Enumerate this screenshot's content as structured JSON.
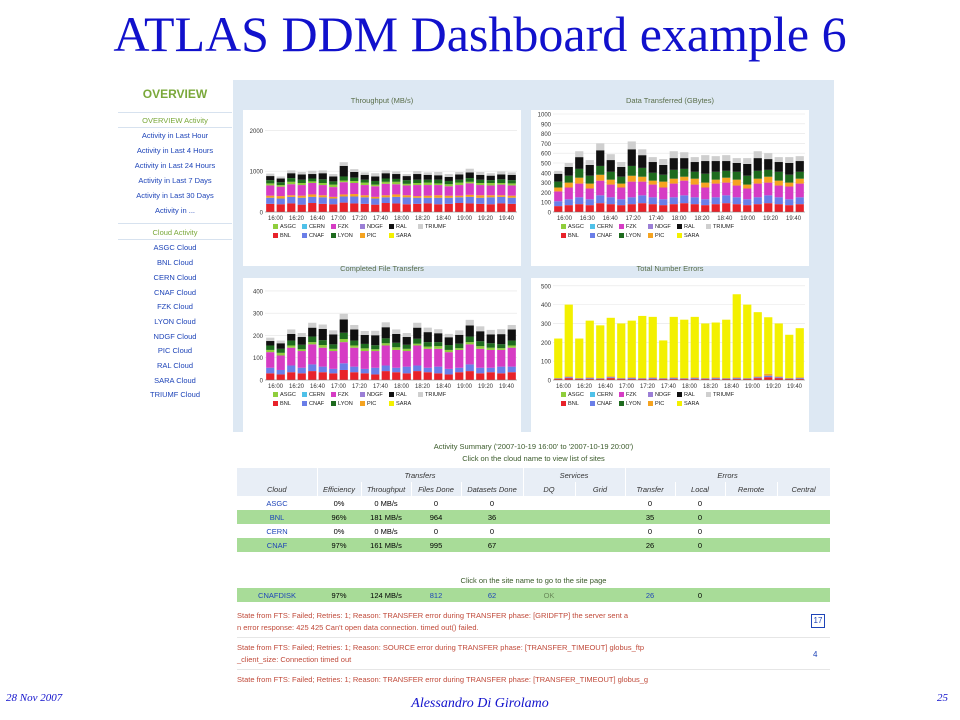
{
  "slide_title": "ATLAS DDM Dashboard example 6",
  "footer": {
    "date": "28 Nov 2007",
    "author": "Alessandro Di Girolamo",
    "page": "25"
  },
  "sidebar": {
    "heading": "OVERVIEW",
    "section1": "OVERVIEW Activity",
    "activity_links": [
      "Activity in Last Hour",
      "Activity in Last 4 Hours",
      "Activity in Last 24 Hours",
      "Activity in Last 7 Days",
      "Activity in Last 30 Days",
      "Activity in ..."
    ],
    "section2": "Cloud Activity",
    "cloud_links": [
      "ASGC Cloud",
      "BNL Cloud",
      "CERN Cloud",
      "CNAF Cloud",
      "FZK Cloud",
      "LYON Cloud",
      "NDGF Cloud",
      "PIC Cloud",
      "RAL Cloud",
      "SARA Cloud",
      "TRIUMF Cloud"
    ]
  },
  "colors": {
    "accent_green": "#7aa83a",
    "link_blue": "#1e44b8",
    "title_blue": "#1111cc",
    "row_green": "#a8dc98"
  },
  "legend": [
    {
      "name": "ASGC",
      "color": "#8fce3c"
    },
    {
      "name": "CERN",
      "color": "#4fc1e9"
    },
    {
      "name": "FZK",
      "color": "#d63cc4"
    },
    {
      "name": "NDGF",
      "color": "#9b7fd6"
    },
    {
      "name": "RAL",
      "color": "#111111"
    },
    {
      "name": "TRIUMF",
      "color": "#cfcfcf"
    },
    {
      "name": "BNL",
      "color": "#e8222a"
    },
    {
      "name": "CNAF",
      "color": "#6a7ee8"
    },
    {
      "name": "LYON",
      "color": "#1e6b1e"
    },
    {
      "name": "PIC",
      "color": "#f5a320"
    },
    {
      "name": "SARA",
      "color": "#f3f000"
    }
  ],
  "chart_data": [
    {
      "type": "bar",
      "stacked": true,
      "title": "Throughput (MB/s)",
      "yticks": [
        0,
        1000,
        2000
      ],
      "ylim": [
        0,
        2400
      ],
      "xticks": [
        "16:00",
        "16:20",
        "16:40",
        "17:00",
        "17:20",
        "17:40",
        "18:00",
        "18:20",
        "18:40",
        "19:00",
        "19:20",
        "19:40"
      ],
      "n_bars": 24,
      "series": [
        {
          "name": "BNL",
          "values": [
            200,
            190,
            210,
            180,
            220,
            200,
            190,
            230,
            210,
            200,
            180,
            220,
            210,
            190,
            200,
            210,
            190,
            200,
            220,
            210,
            200,
            190,
            210,
            200
          ]
        },
        {
          "name": "CNAF",
          "values": [
            150,
            140,
            160,
            170,
            150,
            160,
            140,
            150,
            170,
            160,
            150,
            140,
            160,
            170,
            150,
            140,
            160,
            150,
            140,
            160,
            150,
            170,
            160,
            150
          ]
        },
        {
          "name": "PIC",
          "values": [
            50,
            60,
            40,
            50,
            60,
            50,
            40,
            50,
            60,
            50,
            40,
            50,
            60,
            50,
            40,
            50,
            60,
            50,
            40,
            50,
            60,
            50,
            40,
            50
          ]
        },
        {
          "name": "FZK",
          "values": [
            250,
            230,
            270,
            260,
            280,
            250,
            240,
            300,
            270,
            250,
            260,
            280,
            250,
            240,
            270,
            260,
            250,
            230,
            260,
            280,
            250,
            240,
            260,
            250
          ]
        },
        {
          "name": "ASGC",
          "values": [
            50,
            40,
            60,
            50,
            40,
            50,
            60,
            40,
            50,
            60,
            40,
            50,
            60,
            40,
            50,
            60,
            40,
            50,
            60,
            40,
            50,
            60,
            40,
            50
          ]
        },
        {
          "name": "LYON",
          "values": [
            80,
            70,
            90,
            80,
            70,
            90,
            80,
            100,
            80,
            70,
            90,
            80,
            70,
            90,
            80,
            70,
            90,
            80,
            70,
            90,
            80,
            70,
            90,
            80
          ]
        },
        {
          "name": "RAL",
          "values": [
            100,
            90,
            120,
            130,
            110,
            150,
            120,
            260,
            140,
            120,
            110,
            130,
            120,
            100,
            140,
            120,
            110,
            100,
            130,
            140,
            120,
            110,
            120,
            130
          ]
        },
        {
          "name": "TRIUMF",
          "values": [
            60,
            50,
            70,
            60,
            80,
            70,
            60,
            90,
            70,
            60,
            80,
            70,
            60,
            50,
            70,
            60,
            80,
            70,
            60,
            90,
            70,
            60,
            70,
            60
          ]
        }
      ]
    },
    {
      "type": "bar",
      "stacked": true,
      "title": "Data Transferred (GBytes)",
      "yticks": [
        0,
        100,
        200,
        300,
        400,
        500,
        600,
        700,
        800,
        900,
        1000
      ],
      "ylim": [
        0,
        1000
      ],
      "xticks": [
        "16:00",
        "16:30",
        "16:40",
        "17:20",
        "17:40",
        "18:00",
        "18:20",
        "18:40",
        "19:00",
        "19:20",
        "19:40"
      ],
      "n_bars": 24,
      "series": [
        {
          "name": "BNL",
          "values": [
            60,
            70,
            80,
            70,
            90,
            80,
            70,
            80,
            90,
            80,
            70,
            80,
            90,
            80,
            70,
            80,
            90,
            80,
            70,
            80,
            90,
            80,
            70,
            80
          ]
        },
        {
          "name": "CNAF",
          "values": [
            50,
            60,
            70,
            60,
            80,
            70,
            60,
            70,
            80,
            70,
            60,
            70,
            80,
            70,
            60,
            70,
            80,
            70,
            60,
            70,
            80,
            70,
            60,
            70
          ]
        },
        {
          "name": "FZK",
          "values": [
            100,
            120,
            140,
            110,
            150,
            130,
            120,
            160,
            140,
            130,
            120,
            140,
            150,
            130,
            120,
            140,
            130,
            120,
            110,
            140,
            130,
            120,
            130,
            140
          ]
        },
        {
          "name": "PIC",
          "values": [
            40,
            50,
            60,
            50,
            60,
            50,
            40,
            60,
            50,
            40,
            60,
            50,
            40,
            60,
            50,
            40,
            50,
            60,
            40,
            50,
            60,
            50,
            40,
            50
          ]
        },
        {
          "name": "LYON",
          "values": [
            60,
            70,
            90,
            80,
            90,
            80,
            70,
            100,
            90,
            80,
            70,
            90,
            80,
            70,
            90,
            80,
            70,
            80,
            90,
            80,
            70,
            90,
            80,
            70
          ]
        },
        {
          "name": "RAL",
          "values": [
            80,
            90,
            120,
            110,
            160,
            120,
            100,
            170,
            130,
            110,
            100,
            120,
            110,
            100,
            130,
            110,
            100,
            90,
            120,
            130,
            110,
            100,
            120,
            110
          ]
        },
        {
          "name": "TRIUMF",
          "values": [
            30,
            40,
            60,
            50,
            70,
            60,
            50,
            80,
            60,
            50,
            60,
            70,
            60,
            50,
            60,
            50,
            60,
            50,
            60,
            70,
            60,
            50,
            60,
            50
          ]
        }
      ]
    },
    {
      "type": "bar",
      "stacked": true,
      "title": "Completed File Transfers",
      "yticks": [
        0,
        100,
        200,
        300,
        400
      ],
      "ylim": [
        0,
        440
      ],
      "xticks": [
        "16:00",
        "16:20",
        "16:40",
        "17:00",
        "17:20",
        "17:40",
        "18:00",
        "18:20",
        "18:40",
        "19:00",
        "19:20",
        "19:40"
      ],
      "n_bars": 24,
      "series": [
        {
          "name": "BNL",
          "values": [
            30,
            25,
            35,
            30,
            40,
            35,
            30,
            45,
            35,
            30,
            25,
            40,
            35,
            30,
            40,
            35,
            30,
            25,
            35,
            40,
            30,
            35,
            30,
            35
          ]
        },
        {
          "name": "CNAF",
          "values": [
            25,
            20,
            30,
            25,
            30,
            25,
            20,
            30,
            25,
            20,
            30,
            25,
            20,
            30,
            25,
            20,
            30,
            25,
            20,
            30,
            25,
            20,
            30,
            25
          ]
        },
        {
          "name": "FZK",
          "values": [
            70,
            65,
            80,
            75,
            90,
            85,
            80,
            95,
            85,
            80,
            75,
            90,
            80,
            70,
            90,
            85,
            80,
            75,
            80,
            90,
            85,
            80,
            75,
            85
          ]
        },
        {
          "name": "ASGC",
          "values": [
            10,
            12,
            10,
            8,
            10,
            12,
            10,
            14,
            10,
            12,
            8,
            10,
            12,
            10,
            8,
            10,
            12,
            10,
            8,
            10,
            12,
            10,
            8,
            10
          ]
        },
        {
          "name": "LYON",
          "values": [
            20,
            18,
            22,
            20,
            25,
            22,
            20,
            28,
            22,
            20,
            18,
            22,
            20,
            18,
            22,
            20,
            18,
            22,
            20,
            25,
            22,
            20,
            18,
            22
          ]
        },
        {
          "name": "RAL",
          "values": [
            20,
            25,
            30,
            35,
            40,
            50,
            45,
            60,
            50,
            40,
            45,
            50,
            40,
            35,
            50,
            45,
            40,
            35,
            40,
            50,
            45,
            40,
            45,
            50
          ]
        },
        {
          "name": "TRIUMF",
          "values": [
            15,
            12,
            20,
            18,
            22,
            20,
            18,
            25,
            20,
            18,
            20,
            22,
            20,
            18,
            22,
            20,
            18,
            15,
            20,
            25,
            22,
            20,
            22,
            20
          ]
        }
      ]
    },
    {
      "type": "bar",
      "stacked": true,
      "title": "Total Number Errors",
      "yticks": [
        0,
        100,
        200,
        300,
        400,
        500
      ],
      "ylim": [
        0,
        520
      ],
      "xticks": [
        "16:00",
        "16:20",
        "16:40",
        "17:00",
        "17:20",
        "17:40",
        "18:00",
        "18:20",
        "18:40",
        "19:00",
        "19:20",
        "19:40"
      ],
      "n_bars": 24,
      "series": [
        {
          "name": "BNL",
          "values": [
            5,
            10,
            5,
            5,
            5,
            10,
            5,
            5,
            5,
            5,
            5,
            5,
            5,
            5,
            5,
            5,
            5,
            5,
            5,
            10,
            15,
            10,
            5,
            5
          ]
        },
        {
          "name": "CNAF",
          "values": [
            3,
            5,
            3,
            5,
            3,
            5,
            3,
            5,
            3,
            5,
            3,
            5,
            3,
            5,
            3,
            5,
            3,
            5,
            3,
            5,
            8,
            5,
            3,
            5
          ]
        },
        {
          "name": "PIC",
          "values": [
            2,
            5,
            2,
            5,
            2,
            5,
            2,
            5,
            2,
            5,
            2,
            5,
            2,
            5,
            2,
            5,
            2,
            5,
            2,
            5,
            10,
            5,
            2,
            5
          ]
        },
        {
          "name": "SARA",
          "values": [
            210,
            380,
            210,
            300,
            280,
            310,
            290,
            300,
            330,
            320,
            200,
            320,
            310,
            320,
            290,
            290,
            310,
            440,
            390,
            340,
            300,
            280,
            230,
            260
          ]
        }
      ]
    }
  ],
  "summary": {
    "title": "Activity Summary ('2007-10-19 16:00' to '2007-10-19 20:00')",
    "subtitle": "Click on the cloud name to view list of sites",
    "group_headers": [
      "Transfers",
      "Services",
      "Errors"
    ],
    "columns": [
      "Cloud",
      "Efficiency",
      "Throughput",
      "Files Done",
      "Datasets Done",
      "DQ",
      "Grid",
      "Transfer",
      "Local",
      "Remote",
      "Central"
    ],
    "rows": [
      {
        "cloud": "ASGC",
        "eff": "0%",
        "thr": "0 MB/s",
        "files": "0",
        "ds": "0",
        "dq": "",
        "grid": "",
        "transfer": "0",
        "local": "0",
        "remote": "",
        "central": "",
        "style": "white"
      },
      {
        "cloud": "BNL",
        "eff": "96%",
        "thr": "181 MB/s",
        "files": "964",
        "ds": "36",
        "dq": "",
        "grid": "",
        "transfer": "35",
        "local": "0",
        "remote": "",
        "central": "",
        "style": "green"
      },
      {
        "cloud": "CERN",
        "eff": "0%",
        "thr": "0 MB/s",
        "files": "0",
        "ds": "0",
        "dq": "",
        "grid": "",
        "transfer": "0",
        "local": "0",
        "remote": "",
        "central": "",
        "style": "white"
      },
      {
        "cloud": "CNAF",
        "eff": "97%",
        "thr": "161 MB/s",
        "files": "995",
        "ds": "67",
        "dq": "",
        "grid": "",
        "transfer": "26",
        "local": "0",
        "remote": "",
        "central": "",
        "style": "green"
      }
    ],
    "site_caption": "Click on the site name to go to the site page",
    "site_row": {
      "site": "CNAFDISK",
      "eff": "97%",
      "thr": "124 MB/s",
      "files": "812",
      "ds": "62",
      "dq": "OK",
      "transfer": "26",
      "local": "0"
    },
    "states": [
      {
        "line1": "State from FTS: Failed; Retries: 1; Reason: TRANSFER error during TRANSFER phase: [GRIDFTP] the server sent a",
        "line2": "n error response: 425 425 Can't open data connection. timed out() failed.",
        "count": "17"
      },
      {
        "line1": "State from FTS: Failed; Retries: 1; Reason: SOURCE error during TRANSFER phase: [TRANSFER_TIMEOUT] globus_ftp",
        "line2": "_client_size: Connection timed out",
        "count": "4"
      },
      {
        "line1": "State from FTS: Failed; Retries: 1; Reason: TRANSFER error during TRANSFER phase: [TRANSFER_TIMEOUT] globus_g",
        "line2": "",
        "count": ""
      }
    ]
  }
}
